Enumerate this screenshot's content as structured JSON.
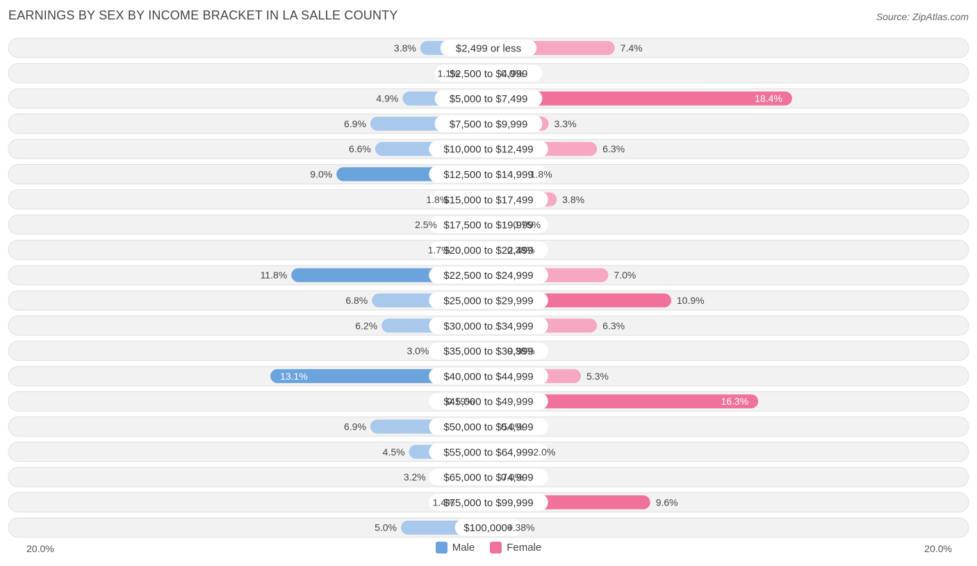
{
  "title": "EARNINGS BY SEX BY INCOME BRACKET IN LA SALLE COUNTY",
  "source": "Source: ZipAtlas.com",
  "colors": {
    "male_light": "#a8c8ec",
    "male_strong": "#6ba3dd",
    "female_light": "#f6a8c2",
    "female_strong": "#f07199",
    "row_bg": "#f2f2f2",
    "row_border": "#e0e0e0"
  },
  "legend": {
    "male": "Male",
    "female": "Female"
  },
  "axis": {
    "left_label": "20.0%",
    "right_label": "20.0%"
  },
  "chart_data": {
    "type": "bar",
    "orientation": "diverging-horizontal",
    "title": "EARNINGS BY SEX BY INCOME BRACKET IN LA SALLE COUNTY",
    "xlim": [
      -20,
      20
    ],
    "categories": [
      "$2,499 or less",
      "$2,500 to $4,999",
      "$5,000 to $7,499",
      "$7,500 to $9,999",
      "$10,000 to $12,499",
      "$12,500 to $14,999",
      "$15,000 to $17,499",
      "$17,500 to $19,999",
      "$20,000 to $22,499",
      "$22,500 to $24,999",
      "$25,000 to $29,999",
      "$30,000 to $34,999",
      "$35,000 to $39,999",
      "$40,000 to $44,999",
      "$45,000 to $49,999",
      "$50,000 to $54,999",
      "$55,000 to $64,999",
      "$65,000 to $74,999",
      "$75,000 to $99,999",
      "$100,000+"
    ],
    "series": [
      {
        "name": "Male",
        "values": [
          3.8,
          1.1,
          4.9,
          6.9,
          6.6,
          9.0,
          1.8,
          2.5,
          1.7,
          11.8,
          6.8,
          6.2,
          3.0,
          13.1,
          0.19,
          6.9,
          4.5,
          3.2,
          1.4,
          5.0
        ],
        "labels": [
          "3.8%",
          "1.1%",
          "4.9%",
          "6.9%",
          "6.6%",
          "9.0%",
          "1.8%",
          "2.5%",
          "1.7%",
          "11.8%",
          "6.8%",
          "6.2%",
          "3.0%",
          "13.1%",
          "0.19%",
          "6.9%",
          "4.5%",
          "3.2%",
          "1.4%",
          "5.0%"
        ]
      },
      {
        "name": "Female",
        "values": [
          7.4,
          0.0,
          18.4,
          3.3,
          6.3,
          1.8,
          3.8,
          0.75,
          0.38,
          7.0,
          10.9,
          6.3,
          0.38,
          5.3,
          16.3,
          0.0,
          2.0,
          0.0,
          9.6,
          0.38
        ],
        "labels": [
          "7.4%",
          "0.0%",
          "18.4%",
          "3.3%",
          "6.3%",
          "1.8%",
          "3.8%",
          "0.75%",
          "0.38%",
          "7.0%",
          "10.9%",
          "6.3%",
          "0.38%",
          "5.3%",
          "16.3%",
          "0.0%",
          "2.0%",
          "0.0%",
          "9.6%",
          "0.38%"
        ]
      }
    ]
  }
}
